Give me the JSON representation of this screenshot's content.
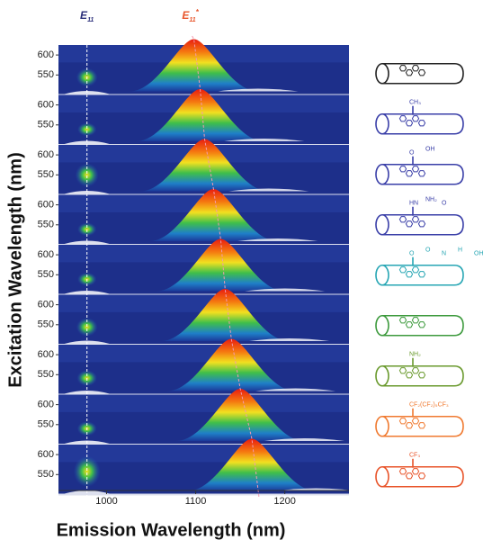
{
  "chart_data": {
    "type": "stacked-maps",
    "xlabel": "Emission Wavelength (nm)",
    "ylabel": "Excitation Wavelength (nm)",
    "xlim": [
      946,
      1272
    ],
    "xticks": [
      1000,
      1100,
      1200
    ],
    "ylim": [
      500,
      625
    ],
    "yticks": [
      550,
      600
    ],
    "e11_label": {
      "base": "E",
      "sub": "11"
    },
    "e11_minus_label": {
      "base": "E",
      "sub": "11",
      "sup": "*"
    },
    "e11_position": 978,
    "panels": [
      {
        "e11_intensity": 0.3,
        "defect_peak": 1098,
        "defect_intensity": 1.0,
        "color": "#222222",
        "groups": []
      },
      {
        "e11_intensity": 0.1,
        "defect_peak": 1105,
        "defect_intensity": 1.0,
        "color": "#3a3fa8",
        "groups": [
          "CH₃"
        ]
      },
      {
        "e11_intensity": 0.5,
        "defect_peak": 1110,
        "defect_intensity": 1.0,
        "color": "#3a3fa8",
        "groups": [
          "O",
          "OH"
        ]
      },
      {
        "e11_intensity": 0.1,
        "defect_peak": 1120,
        "defect_intensity": 1.0,
        "color": "#3a3fa8",
        "groups": [
          "HN",
          "NH₂",
          "O"
        ]
      },
      {
        "e11_intensity": 0.1,
        "defect_peak": 1128,
        "defect_intensity": 1.0,
        "color": "#27a6b4",
        "groups": [
          "O",
          "O",
          "N",
          "H",
          "OH"
        ]
      },
      {
        "e11_intensity": 0.3,
        "defect_peak": 1133,
        "defect_intensity": 1.0,
        "color": "#3d9a3d",
        "groups": []
      },
      {
        "e11_intensity": 0.2,
        "defect_peak": 1140,
        "defect_intensity": 1.0,
        "color": "#6a9a2e",
        "groups": [
          "NH₂"
        ]
      },
      {
        "e11_intensity": 0.15,
        "defect_peak": 1150,
        "defect_intensity": 1.0,
        "color": "#f07a30",
        "groups": [
          "CF₂(CF₂)₅CF₃"
        ]
      },
      {
        "e11_intensity": 0.8,
        "defect_peak": 1163,
        "defect_intensity": 1.0,
        "color": "#e8542a",
        "groups": [
          "CF₃"
        ]
      }
    ]
  }
}
